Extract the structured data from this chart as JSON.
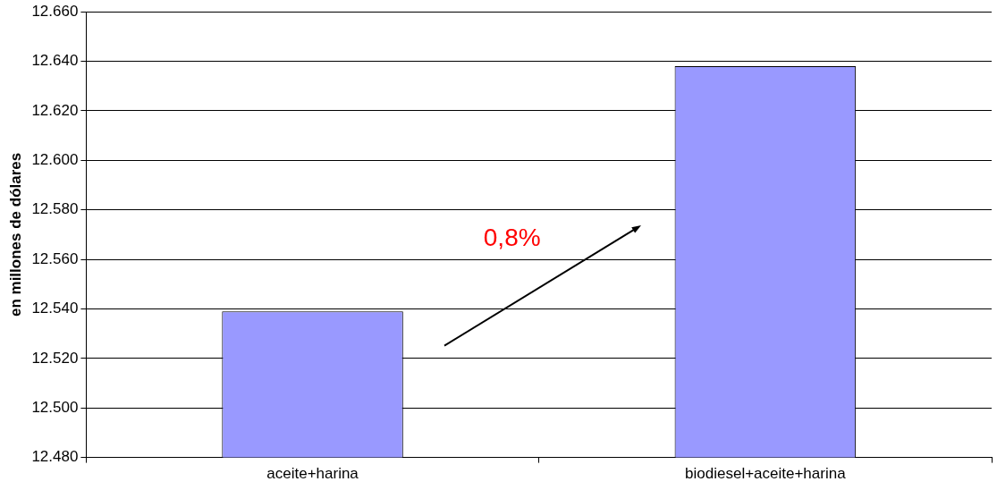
{
  "chart_data": {
    "type": "bar",
    "categories": [
      "aceite+harina",
      "biodiesel+aceite+harina"
    ],
    "values": [
      12539,
      12638
    ],
    "color": "#9999ff",
    "ylabel": "en millones de dólares",
    "ylim": [
      12480,
      12660
    ],
    "yticks": [
      {
        "value": 12480,
        "label": "12.480"
      },
      {
        "value": 12500,
        "label": "12.500"
      },
      {
        "value": 12520,
        "label": "12.520"
      },
      {
        "value": 12540,
        "label": "12.540"
      },
      {
        "value": 12560,
        "label": "12.560"
      },
      {
        "value": 12580,
        "label": "12.580"
      },
      {
        "value": 12600,
        "label": "12.600"
      },
      {
        "value": 12620,
        "label": "12.620"
      },
      {
        "value": 12640,
        "label": "12.640"
      },
      {
        "value": 12660,
        "label": "12.660"
      }
    ],
    "grid": "y",
    "legend": false,
    "annotations": [
      "0,8%"
    ]
  }
}
